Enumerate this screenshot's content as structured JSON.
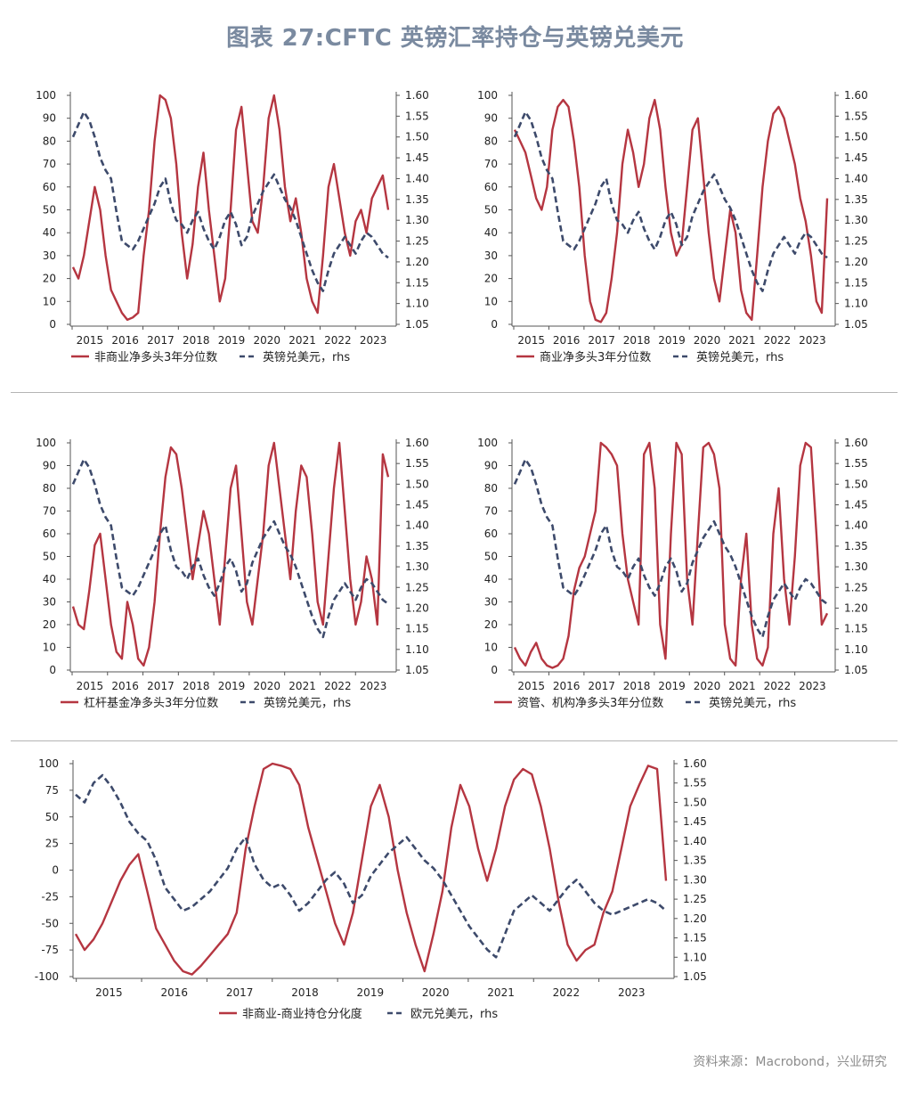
{
  "title": "图表 27:CFTC 英镑汇率持仓与英镑兑美元",
  "source": "资料来源：Macrobond，兴业研究",
  "colors": {
    "primary": "#b53641",
    "secondary": "#3d4a6b",
    "axis": "#555555"
  },
  "chart_data": [
    {
      "type": "line",
      "x_labels": [
        "2015",
        "2016",
        "2017",
        "2018",
        "2019",
        "2020",
        "2021",
        "2022",
        "2023"
      ],
      "y_left": {
        "ticks": [
          0,
          10,
          20,
          30,
          40,
          50,
          60,
          70,
          80,
          90,
          100
        ],
        "range": [
          0,
          100
        ]
      },
      "y_right": {
        "ticks": [
          "1.05",
          "1.10",
          "1.15",
          "1.20",
          "1.25",
          "1.30",
          "1.35",
          "1.40",
          "1.45",
          "1.50",
          "1.55",
          "1.60"
        ],
        "range": [
          1.05,
          1.6
        ]
      },
      "series": [
        {
          "name": "非商业净多头3年分位数",
          "axis": "left",
          "style": "solid",
          "values": [
            25,
            20,
            30,
            45,
            60,
            50,
            30,
            15,
            10,
            5,
            2,
            3,
            5,
            30,
            50,
            80,
            100,
            98,
            90,
            70,
            40,
            20,
            35,
            60,
            75,
            50,
            30,
            10,
            20,
            50,
            85,
            95,
            70,
            45,
            40,
            60,
            90,
            100,
            85,
            60,
            45,
            55,
            40,
            20,
            10,
            5,
            30,
            60,
            70,
            55,
            40,
            30,
            45,
            50,
            40,
            55,
            60,
            65,
            50
          ]
        },
        {
          "name": "英镑兑美元，rhs",
          "axis": "right",
          "style": "dashed",
          "values": [
            1.5,
            1.53,
            1.56,
            1.54,
            1.5,
            1.45,
            1.42,
            1.4,
            1.32,
            1.25,
            1.24,
            1.23,
            1.25,
            1.28,
            1.31,
            1.34,
            1.38,
            1.4,
            1.34,
            1.3,
            1.29,
            1.27,
            1.3,
            1.32,
            1.28,
            1.25,
            1.23,
            1.26,
            1.3,
            1.32,
            1.29,
            1.24,
            1.26,
            1.31,
            1.34,
            1.37,
            1.39,
            1.41,
            1.38,
            1.35,
            1.33,
            1.3,
            1.26,
            1.22,
            1.18,
            1.15,
            1.13,
            1.18,
            1.22,
            1.24,
            1.26,
            1.24,
            1.22,
            1.25,
            1.27,
            1.26,
            1.24,
            1.22,
            1.21
          ]
        }
      ]
    },
    {
      "type": "line",
      "x_labels": [
        "2015",
        "2016",
        "2017",
        "2018",
        "2019",
        "2020",
        "2021",
        "2022",
        "2023"
      ],
      "y_left": {
        "ticks": [
          0,
          10,
          20,
          30,
          40,
          50,
          60,
          70,
          80,
          90,
          100
        ],
        "range": [
          0,
          100
        ]
      },
      "y_right": {
        "ticks": [
          "1.05",
          "1.10",
          "1.15",
          "1.20",
          "1.25",
          "1.30",
          "1.35",
          "1.40",
          "1.45",
          "1.50",
          "1.55",
          "1.60"
        ],
        "range": [
          1.05,
          1.6
        ]
      },
      "series": [
        {
          "name": "商业净多头3年分位数",
          "axis": "left",
          "style": "solid",
          "values": [
            85,
            80,
            75,
            65,
            55,
            50,
            60,
            85,
            95,
            98,
            95,
            80,
            60,
            30,
            10,
            2,
            1,
            5,
            20,
            40,
            70,
            85,
            75,
            60,
            70,
            90,
            98,
            85,
            60,
            40,
            30,
            35,
            60,
            85,
            90,
            65,
            40,
            20,
            10,
            30,
            50,
            40,
            15,
            5,
            2,
            30,
            60,
            80,
            92,
            95,
            90,
            80,
            70,
            55,
            45,
            30,
            10,
            5,
            55
          ]
        },
        {
          "name": "英镑兑美元，rhs",
          "axis": "right",
          "style": "dashed",
          "values": [
            1.5,
            1.53,
            1.56,
            1.54,
            1.5,
            1.45,
            1.42,
            1.4,
            1.32,
            1.25,
            1.24,
            1.23,
            1.25,
            1.28,
            1.31,
            1.34,
            1.38,
            1.4,
            1.34,
            1.3,
            1.29,
            1.27,
            1.3,
            1.32,
            1.28,
            1.25,
            1.23,
            1.26,
            1.3,
            1.32,
            1.29,
            1.24,
            1.26,
            1.31,
            1.34,
            1.37,
            1.39,
            1.41,
            1.38,
            1.35,
            1.33,
            1.3,
            1.26,
            1.22,
            1.18,
            1.15,
            1.13,
            1.18,
            1.22,
            1.24,
            1.26,
            1.24,
            1.22,
            1.25,
            1.27,
            1.26,
            1.24,
            1.22,
            1.21
          ]
        }
      ]
    },
    {
      "type": "line",
      "x_labels": [
        "2015",
        "2016",
        "2017",
        "2018",
        "2019",
        "2020",
        "2021",
        "2022",
        "2023"
      ],
      "y_left": {
        "ticks": [
          0,
          10,
          20,
          30,
          40,
          50,
          60,
          70,
          80,
          90,
          100
        ],
        "range": [
          0,
          100
        ]
      },
      "y_right": {
        "ticks": [
          "1.05",
          "1.10",
          "1.15",
          "1.20",
          "1.25",
          "1.30",
          "1.35",
          "1.40",
          "1.45",
          "1.50",
          "1.55",
          "1.60"
        ],
        "range": [
          1.05,
          1.6
        ]
      },
      "series": [
        {
          "name": "杠杆基金净多头3年分位数",
          "axis": "left",
          "style": "solid",
          "values": [
            28,
            20,
            18,
            35,
            55,
            60,
            40,
            20,
            8,
            5,
            30,
            20,
            5,
            2,
            10,
            30,
            60,
            85,
            98,
            95,
            80,
            60,
            40,
            55,
            70,
            60,
            40,
            20,
            50,
            80,
            90,
            60,
            30,
            20,
            40,
            60,
            90,
            100,
            80,
            60,
            40,
            70,
            90,
            85,
            60,
            30,
            20,
            50,
            80,
            100,
            70,
            40,
            20,
            30,
            50,
            40,
            20,
            95,
            85
          ]
        },
        {
          "name": "英镑兑美元，rhs",
          "axis": "right",
          "style": "dashed",
          "values": [
            1.5,
            1.53,
            1.56,
            1.54,
            1.5,
            1.45,
            1.42,
            1.4,
            1.32,
            1.25,
            1.24,
            1.23,
            1.25,
            1.28,
            1.31,
            1.34,
            1.38,
            1.4,
            1.34,
            1.3,
            1.29,
            1.27,
            1.3,
            1.32,
            1.28,
            1.25,
            1.23,
            1.26,
            1.3,
            1.32,
            1.29,
            1.24,
            1.26,
            1.31,
            1.34,
            1.37,
            1.39,
            1.41,
            1.38,
            1.35,
            1.33,
            1.3,
            1.26,
            1.22,
            1.18,
            1.15,
            1.13,
            1.18,
            1.22,
            1.24,
            1.26,
            1.24,
            1.22,
            1.25,
            1.27,
            1.26,
            1.24,
            1.22,
            1.21
          ]
        }
      ]
    },
    {
      "type": "line",
      "x_labels": [
        "2015",
        "2016",
        "2017",
        "2018",
        "2019",
        "2020",
        "2021",
        "2022",
        "2023"
      ],
      "y_left": {
        "ticks": [
          0,
          10,
          20,
          30,
          40,
          50,
          60,
          70,
          80,
          90,
          100
        ],
        "range": [
          0,
          100
        ]
      },
      "y_right": {
        "ticks": [
          "1.05",
          "1.10",
          "1.15",
          "1.20",
          "1.25",
          "1.30",
          "1.35",
          "1.40",
          "1.45",
          "1.50",
          "1.55",
          "1.60"
        ],
        "range": [
          1.05,
          1.6
        ]
      },
      "series": [
        {
          "name": "资管、机构净多头3年分位数",
          "axis": "left",
          "style": "solid",
          "values": [
            10,
            5,
            2,
            8,
            12,
            5,
            2,
            1,
            2,
            5,
            15,
            35,
            45,
            50,
            60,
            70,
            100,
            98,
            95,
            90,
            60,
            40,
            30,
            20,
            95,
            100,
            80,
            20,
            5,
            60,
            100,
            95,
            40,
            20,
            60,
            98,
            100,
            95,
            80,
            20,
            5,
            2,
            40,
            60,
            20,
            5,
            2,
            10,
            60,
            80,
            40,
            20,
            50,
            90,
            100,
            98,
            60,
            20,
            25
          ]
        },
        {
          "name": "英镑兑美元，rhs",
          "axis": "right",
          "style": "dashed",
          "values": [
            1.5,
            1.53,
            1.56,
            1.54,
            1.5,
            1.45,
            1.42,
            1.4,
            1.32,
            1.25,
            1.24,
            1.23,
            1.25,
            1.28,
            1.31,
            1.34,
            1.38,
            1.4,
            1.34,
            1.3,
            1.29,
            1.27,
            1.3,
            1.32,
            1.28,
            1.25,
            1.23,
            1.26,
            1.3,
            1.32,
            1.29,
            1.24,
            1.26,
            1.31,
            1.34,
            1.37,
            1.39,
            1.41,
            1.38,
            1.35,
            1.33,
            1.3,
            1.26,
            1.22,
            1.18,
            1.15,
            1.13,
            1.18,
            1.22,
            1.24,
            1.26,
            1.24,
            1.22,
            1.25,
            1.27,
            1.26,
            1.24,
            1.22,
            1.21
          ]
        }
      ]
    },
    {
      "type": "line",
      "x_labels": [
        "2015",
        "2016",
        "2017",
        "2018",
        "2019",
        "2020",
        "2021",
        "2022",
        "2023"
      ],
      "y_left": {
        "ticks": [
          -100,
          -75,
          -50,
          -25,
          0,
          25,
          50,
          75,
          100
        ],
        "range": [
          -100,
          100
        ]
      },
      "y_right": {
        "ticks": [
          "1.05",
          "1.10",
          "1.15",
          "1.20",
          "1.25",
          "1.30",
          "1.35",
          "1.40",
          "1.45",
          "1.50",
          "1.55",
          "1.60"
        ],
        "range": [
          1.05,
          1.6
        ]
      },
      "series": [
        {
          "name": "非商业-商业持仓分化度",
          "axis": "left",
          "style": "solid",
          "values": [
            -60,
            -75,
            -65,
            -50,
            -30,
            -10,
            5,
            15,
            -20,
            -55,
            -70,
            -85,
            -95,
            -98,
            -90,
            -80,
            -70,
            -60,
            -40,
            20,
            60,
            95,
            100,
            98,
            95,
            80,
            40,
            10,
            -20,
            -50,
            -70,
            -40,
            10,
            60,
            80,
            50,
            0,
            -40,
            -70,
            -95,
            -60,
            -20,
            40,
            80,
            60,
            20,
            -10,
            20,
            60,
            85,
            95,
            90,
            60,
            20,
            -30,
            -70,
            -85,
            -75,
            -70,
            -40,
            -20,
            20,
            60,
            80,
            98,
            95,
            -10
          ]
        },
        {
          "name": "欧元兑美元，rhs",
          "axis": "right",
          "style": "dashed",
          "values": [
            1.52,
            1.5,
            1.55,
            1.57,
            1.54,
            1.5,
            1.45,
            1.42,
            1.4,
            1.35,
            1.28,
            1.25,
            1.22,
            1.23,
            1.25,
            1.27,
            1.3,
            1.33,
            1.38,
            1.41,
            1.34,
            1.3,
            1.28,
            1.29,
            1.26,
            1.22,
            1.24,
            1.27,
            1.3,
            1.32,
            1.29,
            1.24,
            1.26,
            1.31,
            1.34,
            1.37,
            1.39,
            1.41,
            1.38,
            1.35,
            1.33,
            1.3,
            1.26,
            1.22,
            1.18,
            1.15,
            1.12,
            1.1,
            1.16,
            1.22,
            1.24,
            1.26,
            1.24,
            1.22,
            1.25,
            1.28,
            1.3,
            1.27,
            1.24,
            1.22,
            1.21,
            1.22,
            1.23,
            1.24,
            1.25,
            1.24,
            1.22
          ]
        }
      ]
    }
  ]
}
